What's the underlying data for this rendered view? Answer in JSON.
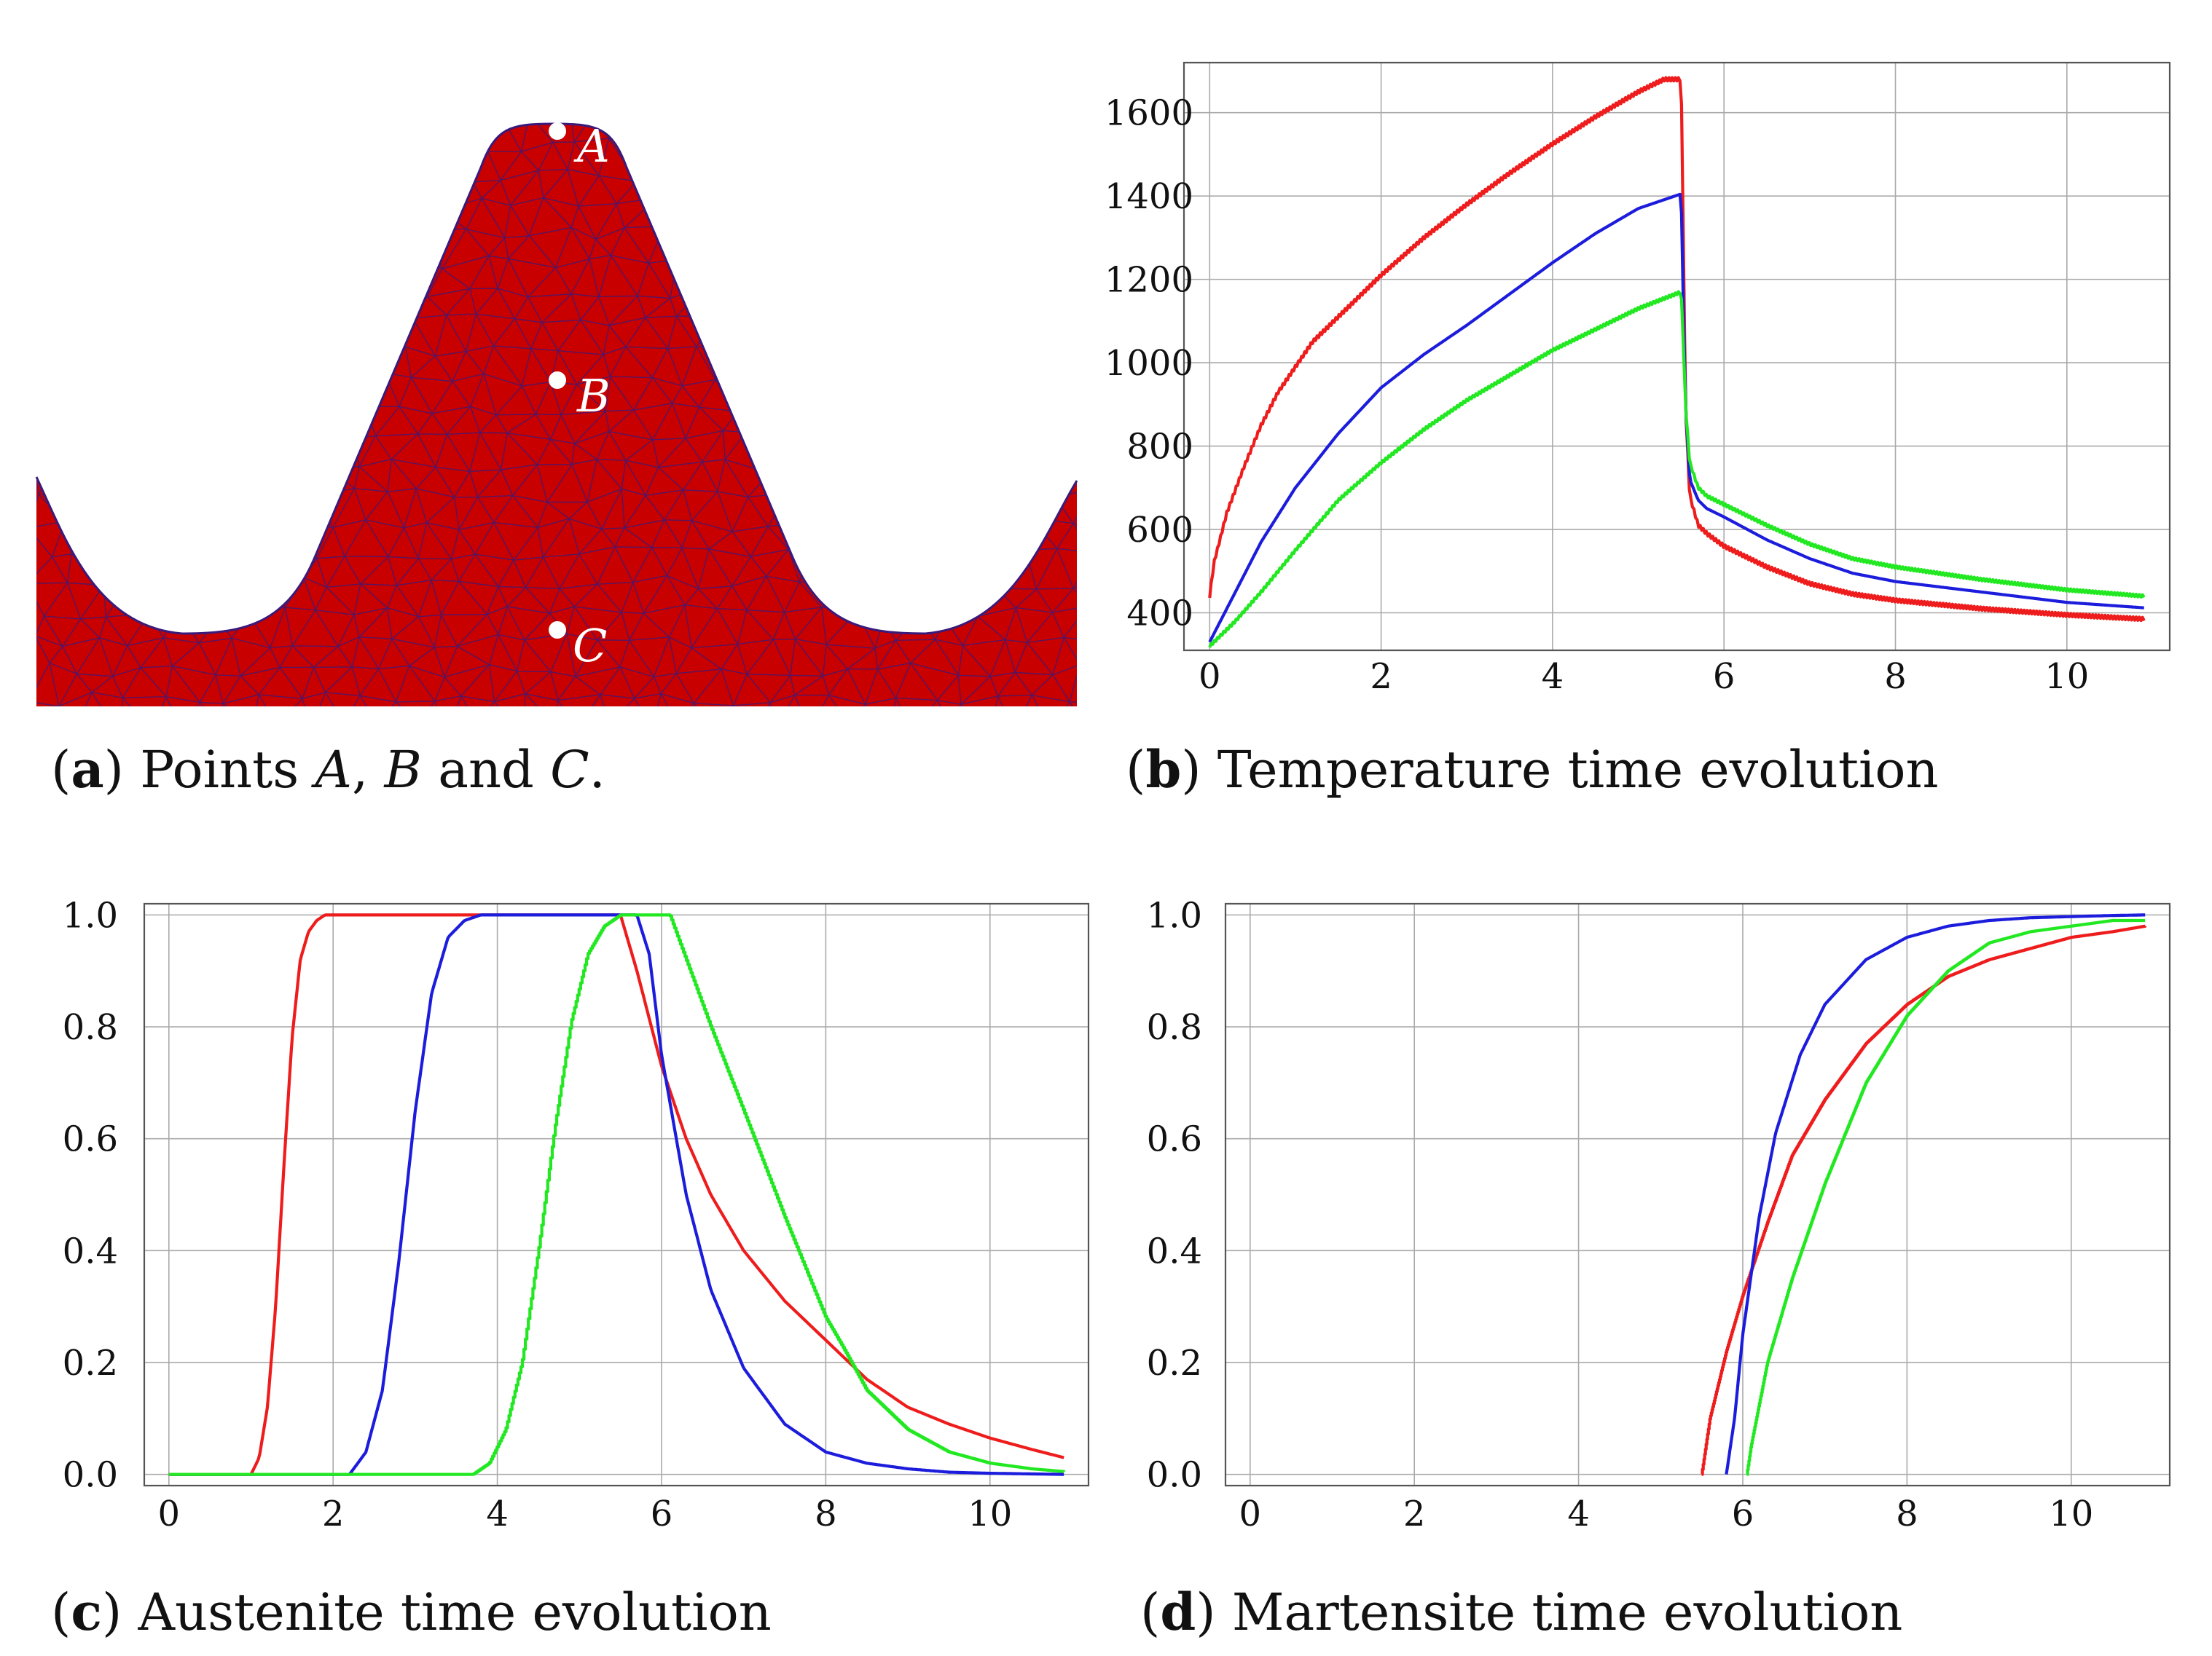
{
  "colors": {
    "red": "#ee1c1c",
    "blue": "#1c1cdc",
    "green": "#22e822",
    "mesh_fill": "#c80000",
    "mesh_lines": "#3a1a7a",
    "grid": "#aaaaaa",
    "axis": "#555555"
  },
  "panel_a": {
    "letter": "a",
    "caption_pre": "Points ",
    "points": [
      {
        "name": "A"
      },
      {
        "name": "B"
      },
      {
        "name": "C"
      }
    ],
    "sep1": ", ",
    "sep2": " and ",
    "caption_end": "."
  },
  "captions": {
    "b": {
      "letter": "b",
      "text": "Temperature time evolution"
    },
    "c": {
      "letter": "c",
      "text": "Austenite time evolution"
    },
    "d": {
      "letter": "d",
      "text": "Martensite time evolution"
    }
  },
  "chart_data": [
    {
      "id": "b",
      "type": "line",
      "title": "Temperature time evolution",
      "xlabel": "",
      "ylabel": "",
      "xlim": [
        -0.3,
        11.2
      ],
      "ylim": [
        310,
        1720
      ],
      "xticks": [
        0,
        2,
        4,
        6,
        8,
        10
      ],
      "yticks": [
        400,
        600,
        800,
        1000,
        1200,
        1400,
        1600
      ],
      "yfmt": 0,
      "series": [
        {
          "name": "A",
          "color": "red",
          "jagged": 4,
          "x": [
            0,
            0.05,
            0.2,
            0.4,
            0.6,
            0.8,
            1.0,
            1.2,
            1.5,
            2.0,
            2.5,
            3.0,
            3.5,
            4.0,
            4.5,
            5.0,
            5.3,
            5.5,
            5.52,
            5.55,
            5.6,
            5.7,
            5.8,
            6.0,
            6.5,
            7.0,
            7.5,
            8.0,
            9.0,
            10.0,
            10.9
          ],
          "y": [
            440,
            520,
            640,
            750,
            850,
            930,
            990,
            1050,
            1110,
            1210,
            1300,
            1380,
            1455,
            1525,
            1590,
            1650,
            1680,
            1680,
            1400,
            900,
            680,
            610,
            590,
            560,
            510,
            470,
            445,
            430,
            410,
            395,
            385
          ]
        },
        {
          "name": "B",
          "color": "blue",
          "x": [
            0,
            0.3,
            0.6,
            1.0,
            1.5,
            2.0,
            2.5,
            3.0,
            3.5,
            4.0,
            4.5,
            5.0,
            5.5,
            5.52,
            5.55,
            5.6,
            5.7,
            5.8,
            6.0,
            6.5,
            7.0,
            7.5,
            8.0,
            9.0,
            10.0,
            10.9
          ],
          "y": [
            330,
            450,
            570,
            700,
            830,
            940,
            1020,
            1090,
            1165,
            1240,
            1310,
            1370,
            1405,
            1200,
            900,
            720,
            670,
            650,
            630,
            575,
            530,
            495,
            475,
            450,
            425,
            412
          ]
        },
        {
          "name": "C",
          "color": "green",
          "jagged": 3,
          "x": [
            0,
            0.3,
            0.6,
            1.0,
            1.5,
            2.0,
            2.5,
            3.0,
            3.5,
            4.0,
            4.5,
            5.0,
            5.5,
            5.52,
            5.55,
            5.6,
            5.7,
            5.8,
            6.0,
            6.5,
            7.0,
            7.5,
            8.0,
            9.0,
            10.0,
            10.9
          ],
          "y": [
            320,
            380,
            450,
            550,
            670,
            760,
            840,
            910,
            970,
            1030,
            1080,
            1130,
            1170,
            1080,
            900,
            760,
            700,
            680,
            660,
            610,
            565,
            530,
            510,
            480,
            455,
            440
          ]
        }
      ]
    },
    {
      "id": "c",
      "type": "line",
      "title": "Austenite time evolution",
      "xlabel": "",
      "ylabel": "",
      "xlim": [
        -0.3,
        11.2
      ],
      "ylim": [
        -0.02,
        1.02
      ],
      "xticks": [
        0,
        2,
        4,
        6,
        8,
        10
      ],
      "yticks": [
        0.0,
        0.2,
        0.4,
        0.6,
        0.8,
        1.0
      ],
      "yfmt": 1,
      "series": [
        {
          "name": "A",
          "color": "red",
          "x": [
            0,
            1.0,
            1.1,
            1.2,
            1.3,
            1.4,
            1.5,
            1.6,
            1.7,
            1.8,
            1.9,
            2.0,
            5.5,
            5.7,
            6.0,
            6.3,
            6.6,
            7.0,
            7.5,
            8.0,
            8.5,
            9.0,
            9.5,
            10.0,
            10.5,
            10.9
          ],
          "y": [
            0,
            0,
            0.03,
            0.12,
            0.3,
            0.55,
            0.78,
            0.92,
            0.97,
            0.99,
            1.0,
            1.0,
            1.0,
            0.9,
            0.73,
            0.6,
            0.5,
            0.4,
            0.31,
            0.24,
            0.17,
            0.12,
            0.09,
            0.065,
            0.045,
            0.03
          ]
        },
        {
          "name": "B",
          "color": "blue",
          "x": [
            0,
            2.2,
            2.4,
            2.6,
            2.8,
            3.0,
            3.2,
            3.4,
            3.6,
            3.8,
            5.7,
            5.85,
            6.0,
            6.3,
            6.6,
            7.0,
            7.5,
            8.0,
            8.5,
            9.0,
            9.5,
            10.0,
            10.9
          ],
          "y": [
            0,
            0,
            0.04,
            0.15,
            0.38,
            0.65,
            0.86,
            0.96,
            0.99,
            1.0,
            1.0,
            0.93,
            0.75,
            0.5,
            0.33,
            0.19,
            0.09,
            0.04,
            0.02,
            0.01,
            0.004,
            0.002,
            0.0
          ]
        },
        {
          "name": "C",
          "color": "green",
          "stairs": true,
          "x": [
            0,
            3.7,
            3.9,
            4.1,
            4.3,
            4.5,
            4.7,
            4.9,
            5.1,
            5.3,
            5.5,
            6.1,
            6.3,
            6.6,
            7.0,
            7.5,
            8.0,
            8.2,
            8.5,
            9.0,
            9.5,
            10.0,
            10.5,
            10.9
          ],
          "y": [
            0,
            0,
            0.02,
            0.08,
            0.2,
            0.4,
            0.62,
            0.81,
            0.93,
            0.98,
            1.0,
            1.0,
            0.92,
            0.8,
            0.65,
            0.46,
            0.28,
            0.23,
            0.15,
            0.08,
            0.04,
            0.02,
            0.01,
            0.005
          ]
        }
      ]
    },
    {
      "id": "d",
      "type": "line",
      "title": "Martensite time evolution",
      "xlabel": "",
      "ylabel": "",
      "xlim": [
        -0.3,
        11.2
      ],
      "ylim": [
        -0.02,
        1.02
      ],
      "xticks": [
        0,
        2,
        4,
        6,
        8,
        10
      ],
      "yticks": [
        0.0,
        0.2,
        0.4,
        0.6,
        0.8,
        1.0
      ],
      "yfmt": 1,
      "series": [
        {
          "name": "A",
          "color": "red",
          "stairs": true,
          "x": [
            5.5,
            5.6,
            5.8,
            6.0,
            6.3,
            6.6,
            7.0,
            7.5,
            8.0,
            8.5,
            9.0,
            9.5,
            10.0,
            10.5,
            10.9
          ],
          "y": [
            0,
            0.1,
            0.22,
            0.32,
            0.45,
            0.57,
            0.67,
            0.77,
            0.84,
            0.89,
            0.92,
            0.94,
            0.96,
            0.97,
            0.98
          ]
        },
        {
          "name": "B",
          "color": "blue",
          "x": [
            5.8,
            5.9,
            6.0,
            6.2,
            6.4,
            6.7,
            7.0,
            7.5,
            8.0,
            8.5,
            9.0,
            9.5,
            10.0,
            10.5,
            10.9
          ],
          "y": [
            0,
            0.1,
            0.25,
            0.46,
            0.61,
            0.75,
            0.84,
            0.92,
            0.96,
            0.98,
            0.99,
            0.995,
            0.997,
            0.999,
            1.0
          ]
        },
        {
          "name": "C",
          "color": "green",
          "stairs": true,
          "x": [
            6.05,
            6.1,
            6.3,
            6.6,
            7.0,
            7.5,
            8.0,
            8.5,
            9.0,
            9.5,
            10.0,
            10.5,
            10.9
          ],
          "y": [
            0,
            0.05,
            0.2,
            0.35,
            0.52,
            0.7,
            0.82,
            0.9,
            0.95,
            0.97,
            0.98,
            0.99,
            0.99
          ]
        }
      ]
    }
  ]
}
